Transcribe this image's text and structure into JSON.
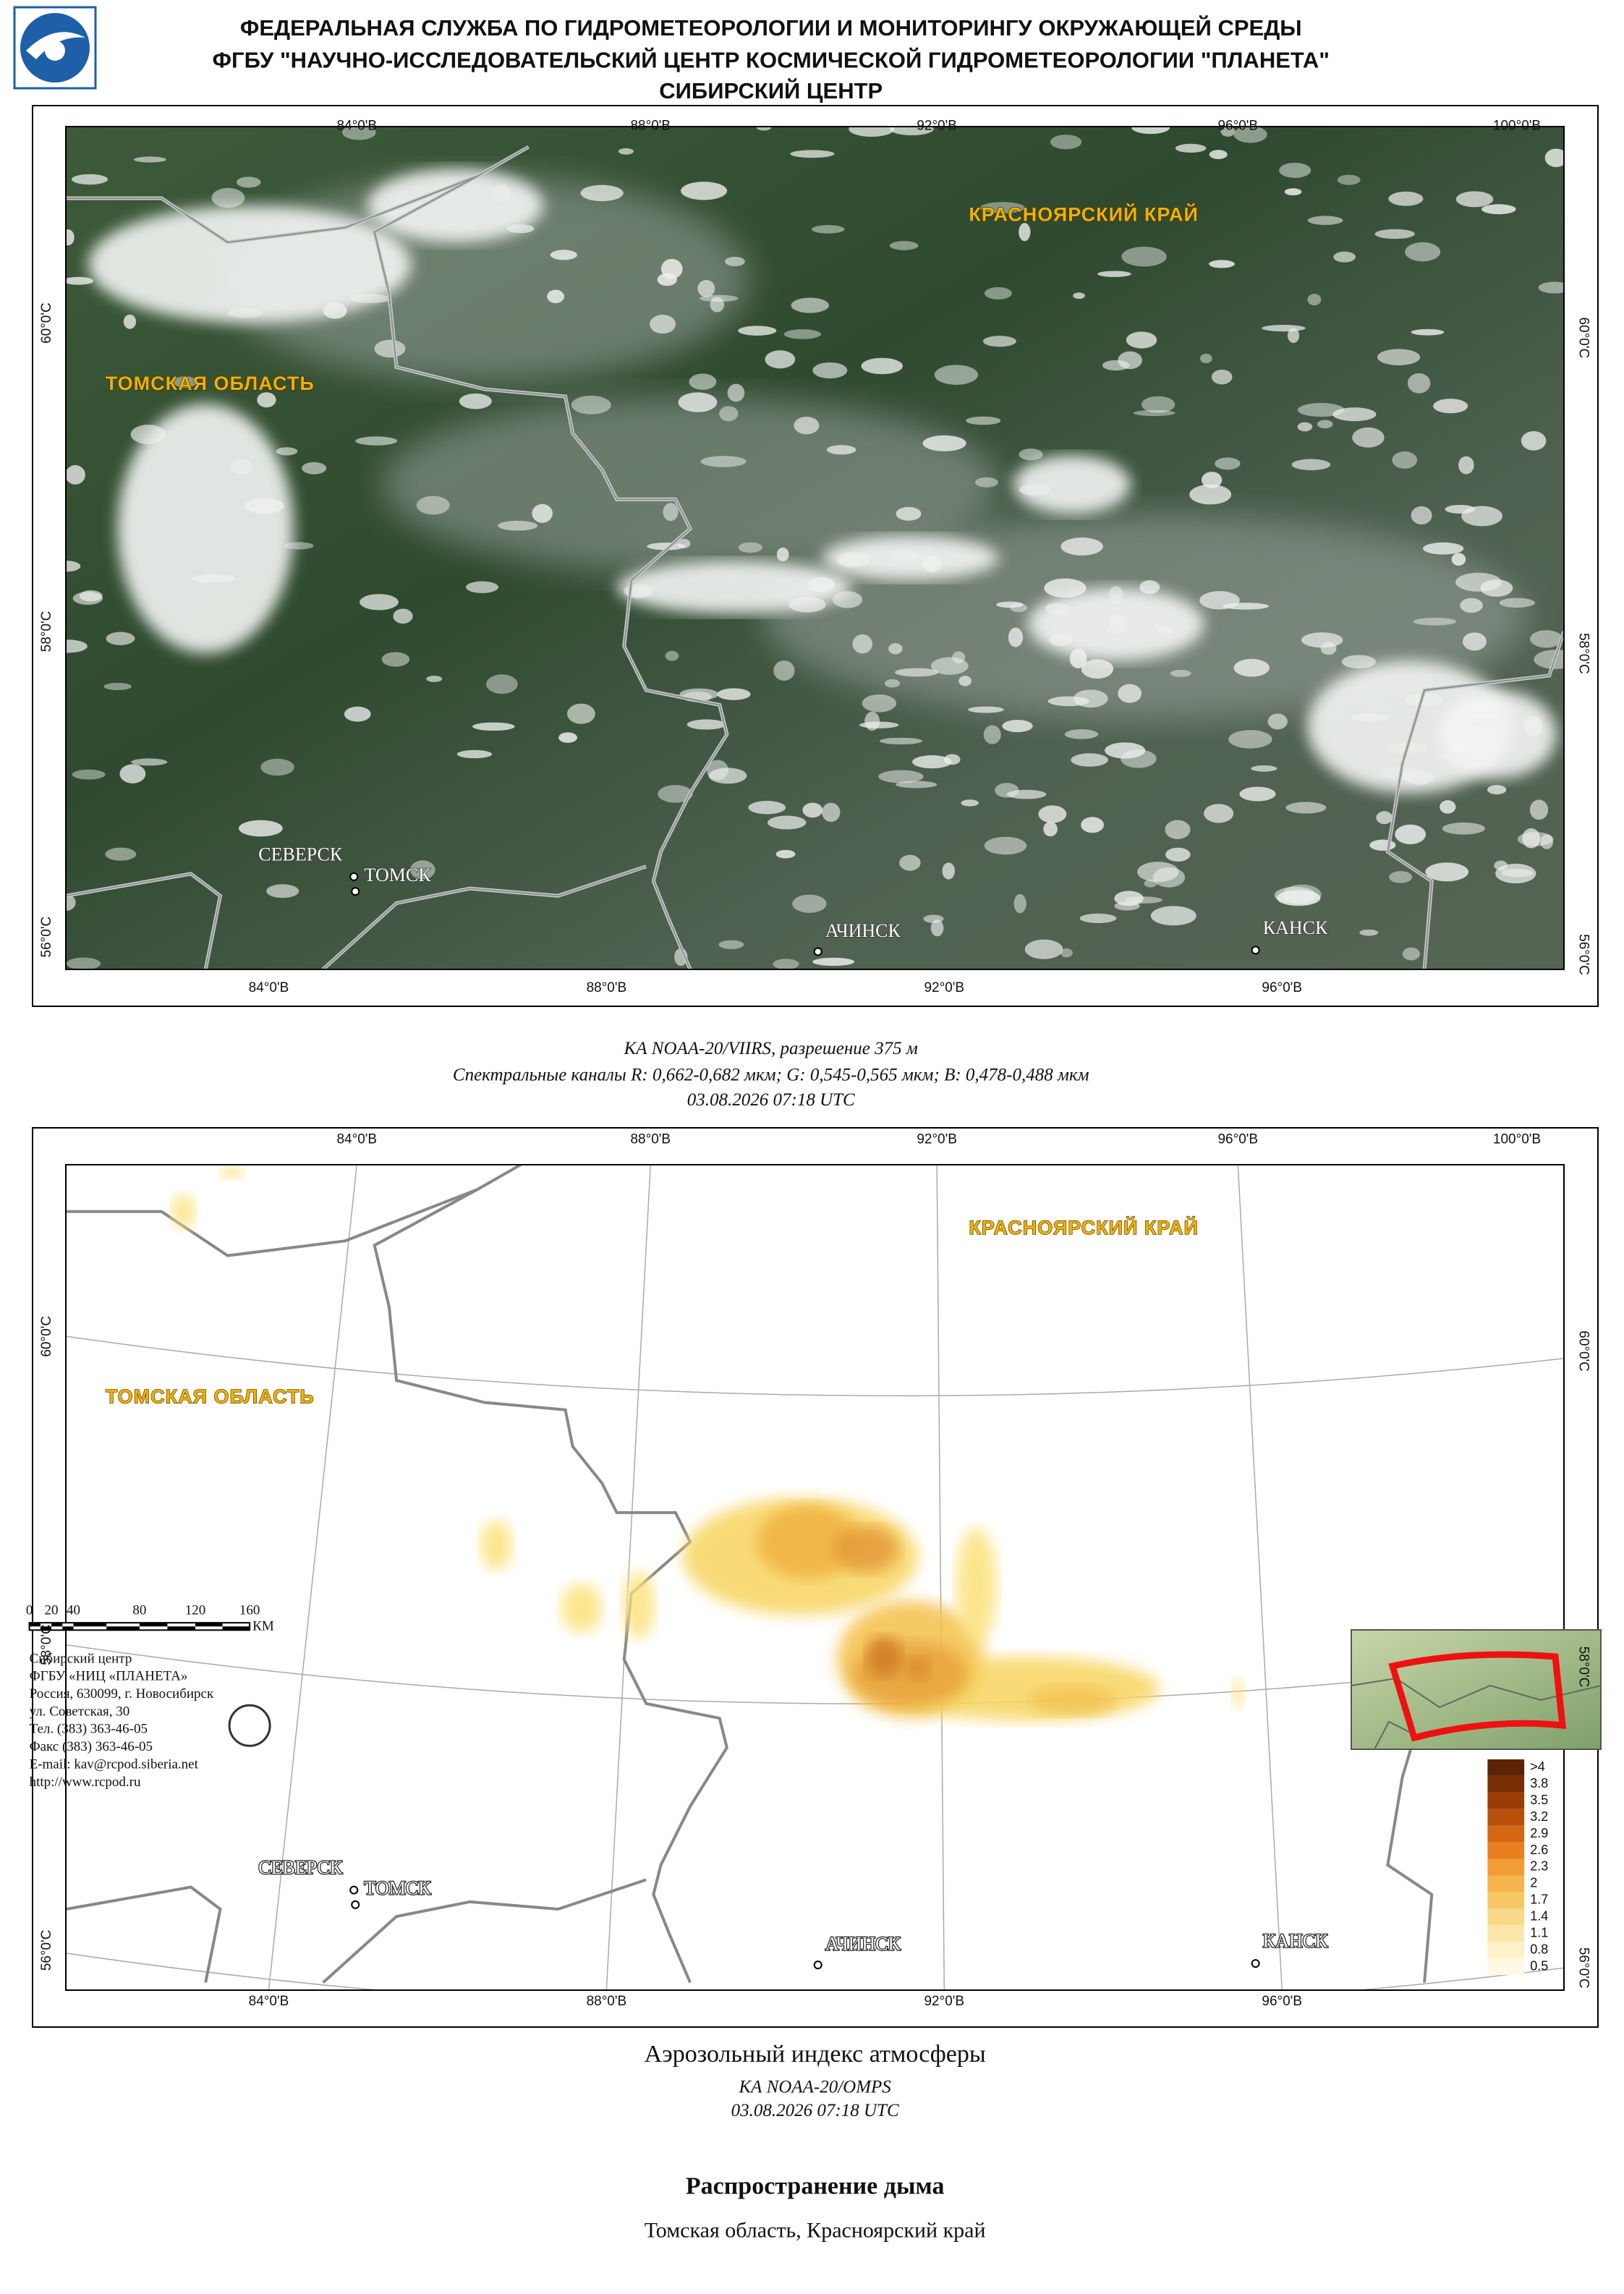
{
  "header": {
    "lines": [
      "ФЕДЕРАЛЬНАЯ СЛУЖБА ПО ГИДРОМЕТЕОРОЛОГИИ И МОНИТОРИНГУ ОКРУЖАЮЩЕЙ СРЕДЫ",
      "ФГБУ \"НАУЧНО-ИССЛЕДОВАТЕЛЬСКИЙ ЦЕНТР КОСМИЧЕСКОЙ ГИДРОМЕТЕОРОЛОГИИ \"ПЛАНЕТА\"",
      "СИБИРСКИЙ ЦЕНТР"
    ]
  },
  "map_labels": {
    "lon_top": [
      "84°0'В",
      "88°0'В",
      "92°0'В",
      "96°0'В",
      "100°0'В"
    ],
    "lon_bottom": [
      "84°0'В",
      "88°0'В",
      "92°0'В",
      "96°0'В"
    ],
    "lat": [
      "60°0'С",
      "58°0'С",
      "56°0'С"
    ],
    "regions": [
      "КРАСНОЯРСКИЙ КРАЙ",
      "ТОМСКАЯ ОБЛАСТЬ"
    ],
    "cities": [
      "СЕВЕРСК",
      "ТОМСК",
      "АЧИНСК",
      "КАНСК"
    ]
  },
  "satellite_caption": [
    "КА NOAA-20/VIIRS, разрешение 375 м",
    "Спектральные каналы R: 0,662-0,682 мкм; G: 0,545-0,565 мкм; B: 0,478-0,488 мкм",
    "03.08.2026  07:18 UTC"
  ],
  "legend": [
    ">4",
    "3.8",
    "3.5",
    "3.2",
    "2.9",
    "2.6",
    "2.3",
    "2",
    "1.7",
    "1.4",
    "1.1",
    "0.8",
    "0.5"
  ],
  "index_title": "Аэрозольный индекс атмосферы",
  "index_caption": [
    "КА NOAA-20/OMPS",
    "03.08.2026  07:18 UTC"
  ],
  "scale_bar": [
    "0",
    "20",
    "40",
    "80",
    "120",
    "160",
    "КМ"
  ],
  "contacts": [
    "Сибирский центр",
    "ФГБУ «НИЦ «ПЛАНЕТА»",
    "Россия, 630099, г. Новосибирск",
    "ул. Советская, 30",
    "Тел. (383) 363-46-05",
    "Факс (383) 363-46-05",
    "E-mail: kav@rcpod.siberia.net",
    "http://www.rcpod.ru"
  ],
  "title": "Распространение дыма",
  "subtitle": "Томская область, Красноярский край"
}
